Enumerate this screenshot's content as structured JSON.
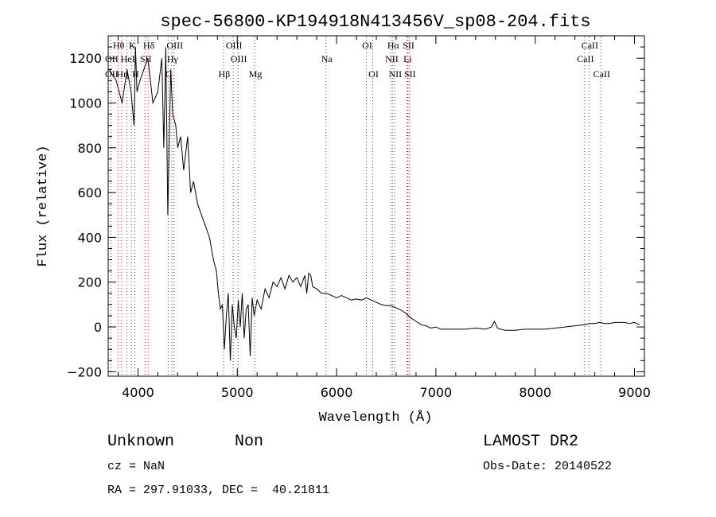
{
  "chart_data": {
    "type": "line",
    "title": "spec-56800-KP194918N413456V_sp08-204.fits",
    "xlabel": "Wavelength (Å)",
    "ylabel": "Flux (relative)",
    "xlim": [
      3700,
      9100
    ],
    "ylim": [
      -220,
      1300
    ],
    "xticks": [
      4000,
      5000,
      6000,
      7000,
      8000,
      9000
    ],
    "yticks": [
      -200,
      0,
      200,
      400,
      600,
      800,
      1000,
      1200
    ],
    "grid": false,
    "series": [
      {
        "color": "#000000",
        "x": [
          3710,
          3780,
          3840,
          3890,
          3930,
          3960,
          3975,
          3990,
          4020,
          4060,
          4100,
          4150,
          4200,
          4240,
          4260,
          4280,
          4300,
          4330,
          4350,
          4380,
          4400,
          4430,
          4460,
          4500,
          4530,
          4560,
          4600,
          4640,
          4680,
          4720,
          4760,
          4790,
          4810,
          4830,
          4850,
          4870,
          4890,
          4910,
          4930,
          4950,
          4970,
          4990,
          5010,
          5030,
          5050,
          5070,
          5090,
          5110,
          5130,
          5150,
          5170,
          5200,
          5240,
          5280,
          5320,
          5360,
          5400,
          5440,
          5480,
          5520,
          5560,
          5600,
          5640,
          5680,
          5700,
          5720,
          5740,
          5760,
          5800,
          5850,
          5900,
          5950,
          6000,
          6050,
          6100,
          6150,
          6200,
          6250,
          6300,
          6350,
          6400,
          6450,
          6500,
          6550,
          6600,
          6650,
          6700,
          6750,
          6800,
          6850,
          6900,
          6950,
          7000,
          7050,
          7100,
          7150,
          7200,
          7300,
          7400,
          7500,
          7560,
          7590,
          7620,
          7650,
          7700,
          7800,
          7900,
          8000,
          8100,
          8200,
          8300,
          8400,
          8500,
          8550,
          8600,
          8650,
          8700,
          8750,
          8800,
          8850,
          8900,
          8950,
          9000,
          9050
        ],
        "values": [
          1150,
          1100,
          1000,
          1150,
          1050,
          900,
          1250,
          1050,
          1100,
          1150,
          1200,
          1000,
          1050,
          1200,
          800,
          1250,
          500,
          1150,
          950,
          900,
          800,
          850,
          700,
          850,
          600,
          650,
          550,
          500,
          450,
          400,
          300,
          250,
          150,
          80,
          100,
          -100,
          50,
          150,
          -150,
          100,
          0,
          -50,
          120,
          0,
          150,
          -50,
          80,
          100,
          -130,
          130,
          50,
          120,
          80,
          170,
          130,
          200,
          180,
          220,
          170,
          230,
          200,
          220,
          180,
          230,
          150,
          240,
          230,
          180,
          170,
          150,
          150,
          140,
          130,
          140,
          130,
          120,
          125,
          120,
          130,
          120,
          110,
          100,
          95,
          95,
          85,
          75,
          60,
          40,
          25,
          10,
          5,
          -5,
          0,
          -10,
          -10,
          -10,
          -10,
          -10,
          -5,
          -10,
          0,
          25,
          -5,
          -10,
          -15,
          -15,
          -10,
          -10,
          -10,
          -5,
          0,
          5,
          10,
          15,
          15,
          20,
          15,
          15,
          20,
          20,
          20,
          15,
          20,
          10
        ]
      }
    ],
    "line_markers": [
      {
        "label": "Hθ",
        "wavelength": 3798,
        "row": 0
      },
      {
        "label": "K",
        "wavelength": 3934,
        "row": 0
      },
      {
        "label": "Hδ",
        "wavelength": 4102,
        "row": 0
      },
      {
        "label": "OIII",
        "wavelength": 4363,
        "row": 0
      },
      {
        "label": "OIII",
        "wavelength": 4959,
        "row": 0
      },
      {
        "label": "OI",
        "wavelength": 6300,
        "row": 0
      },
      {
        "label": "Hα",
        "wavelength": 6563,
        "row": 0
      },
      {
        "label": "SII",
        "wavelength": 6717,
        "row": 0
      },
      {
        "label": "CaII",
        "wavelength": 8542,
        "row": 0
      },
      {
        "label": "OII",
        "wavelength": 3727,
        "row": 1
      },
      {
        "label": "HeI",
        "wavelength": 3889,
        "row": 1
      },
      {
        "label": "SII",
        "wavelength": 4070,
        "row": 1
      },
      {
        "label": "Hγ",
        "wavelength": 4340,
        "row": 1
      },
      {
        "label": "OIII",
        "wavelength": 5007,
        "row": 1
      },
      {
        "label": "Na",
        "wavelength": 5893,
        "row": 1
      },
      {
        "label": "NII",
        "wavelength": 6548,
        "row": 1
      },
      {
        "label": "Li",
        "wavelength": 6708,
        "row": 1
      },
      {
        "label": "CaII",
        "wavelength": 8498,
        "row": 1
      },
      {
        "label": "OII",
        "wavelength": 3727,
        "row": 2
      },
      {
        "label": "Hη",
        "wavelength": 3835,
        "row": 2
      },
      {
        "label": "H",
        "wavelength": 3968,
        "row": 2
      },
      {
        "label": "G",
        "wavelength": 4304,
        "row": 2
      },
      {
        "label": "Hβ",
        "wavelength": 4861,
        "row": 2
      },
      {
        "label": "Mg",
        "wavelength": 5175,
        "row": 2
      },
      {
        "label": "OI",
        "wavelength": 6364,
        "row": 2
      },
      {
        "label": "NII",
        "wavelength": 6583,
        "row": 2
      },
      {
        "label": "SII",
        "wavelength": 6731,
        "row": 2
      },
      {
        "label": "CaII",
        "wavelength": 8662,
        "row": 2
      }
    ]
  },
  "footer": {
    "object_class": "Unknown",
    "subclass": "Non",
    "survey": "LAMOST DR2",
    "redshift": "cz = NaN",
    "obs_date": "Obs-Date: 20140522",
    "coordinates": "RA = 297.91033, DEC =  40.21811"
  }
}
